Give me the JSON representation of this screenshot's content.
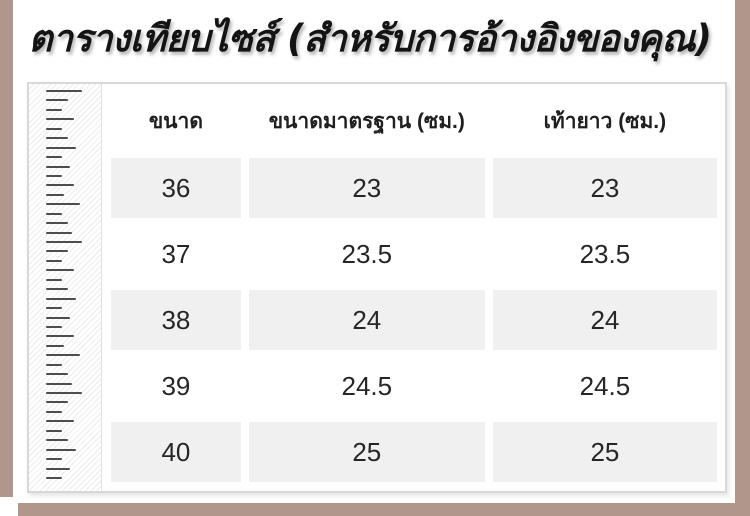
{
  "title": "ตารางเทียบไซส์ (สำหรับการอ้างอิงของคุณ)",
  "table": {
    "headers": [
      "ขนาด",
      "ขนาดมาตรฐาน (ซม.)",
      "เท้ายาว (ซม.)"
    ],
    "rows": [
      [
        "36",
        "23",
        "23"
      ],
      [
        "37",
        "23.5",
        "23.5"
      ],
      [
        "38",
        "24",
        "24"
      ],
      [
        "39",
        "24.5",
        "24.5"
      ],
      [
        "40",
        "25",
        "25"
      ]
    ]
  },
  "colors": {
    "frame": "#b1978b",
    "row_alt": "#f0f0f0",
    "card_border": "#d8d8d8",
    "text": "#262626"
  },
  "ruler": {
    "tick_count": 42,
    "tick_widths": [
      36,
      22,
      16,
      28,
      16,
      22,
      30,
      16,
      24,
      16,
      28,
      18,
      34,
      16,
      22,
      26
    ]
  }
}
